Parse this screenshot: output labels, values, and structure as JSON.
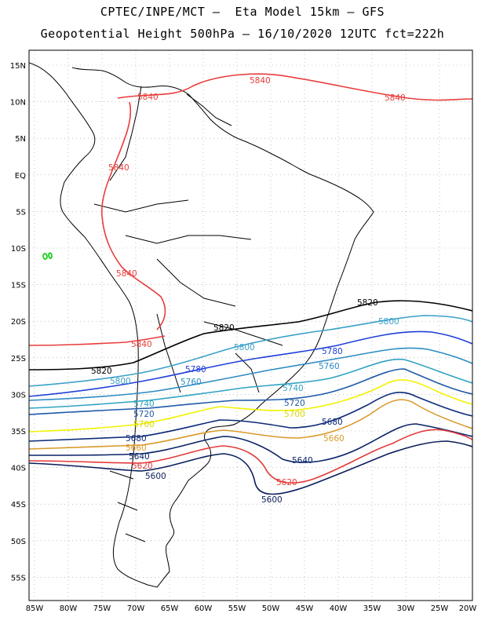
{
  "header": {
    "line1": "CPTEC/INPE/MCT –  Eta Model 15km – GFS",
    "line2": "Geopotential Height 500hPa – 16/10/2020 12UTC fct=222h"
  },
  "map": {
    "lat_labels": [
      "15N",
      "10N",
      "5N",
      "EQ",
      "5S",
      "10S",
      "15S",
      "20S",
      "25S",
      "30S",
      "35S",
      "40S",
      "45S",
      "50S",
      "55S"
    ],
    "lon_labels": [
      "85W",
      "80W",
      "75W",
      "70W",
      "65W",
      "60W",
      "55W",
      "50W",
      "45W",
      "40W",
      "35W",
      "30W",
      "25W",
      "20W"
    ],
    "extent": {
      "lon": [
        -86,
        -20
      ],
      "lat": [
        -58,
        16
      ]
    },
    "grid": "dotted",
    "colors": {
      "coast": "#000000",
      "c5840": "#e83c3c",
      "c5820": "#000000",
      "c5800": "#3aa0c8",
      "c5780": "#1f3fd8",
      "c5760": "#2c8cc4",
      "c5740": "#2fa3c2",
      "c5720": "#1e5aa8",
      "c5700": "#f2f200",
      "c5680": "#0c2a78",
      "c5660": "#d99a2b",
      "c5640": "#0a2266",
      "c5620": "#e33b3b",
      "c5600": "#0a1e5a",
      "small": "#00cc00"
    }
  },
  "contour_labels": {
    "v5840": "5840",
    "v5820": "5820",
    "v5800": "5800",
    "v5780": "5780",
    "v5760": "5760",
    "v5740": "5740",
    "v5720": "5720",
    "v5700": "5700",
    "v5680": "5680",
    "v5660": "5660",
    "v5640": "5640",
    "v5620": "5620",
    "v5600": "5600"
  }
}
